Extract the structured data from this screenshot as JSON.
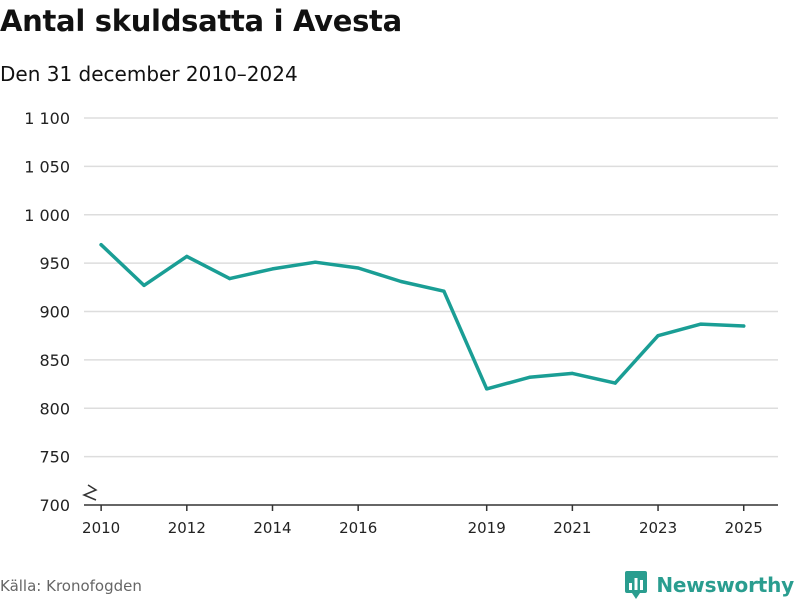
{
  "header": {
    "title": "Antal skuldsatta i Avesta",
    "subtitle": "Den 31 december 2010–2024"
  },
  "footer": {
    "source": "Källa: Kronofogden",
    "brand": "Newsworthy"
  },
  "colors": {
    "line": "#1a9e95",
    "grid": "#dddddd",
    "axis": "#333333",
    "brand": "#2a9d8f"
  },
  "chart_data": {
    "type": "line",
    "title": "Antal skuldsatta i Avesta",
    "subtitle": "Den 31 december 2010–2024",
    "xlabel": "",
    "ylabel": "",
    "xlim": [
      2009.6,
      2025.8
    ],
    "ylim": [
      700,
      1100
    ],
    "yticks": [
      700,
      750,
      800,
      850,
      900,
      950,
      1000,
      1050,
      1100
    ],
    "ytick_labels": [
      "700",
      "750",
      "800",
      "850",
      "900",
      "950",
      "1 000",
      "1 050",
      "1 100"
    ],
    "xticks": [
      2010,
      2012,
      2014,
      2016,
      2019,
      2021,
      2023,
      2025
    ],
    "xtick_labels": [
      "2010",
      "2012",
      "2014",
      "2016",
      "2019",
      "2021",
      "2023",
      "2025"
    ],
    "axis_break": true,
    "grid": true,
    "series": [
      {
        "name": "Antal skuldsatta",
        "x": [
          2010,
          2011,
          2012,
          2013,
          2014,
          2015,
          2016,
          2017,
          2018,
          2019,
          2020,
          2021,
          2022,
          2023,
          2024,
          2025
        ],
        "values": [
          969,
          927,
          957,
          934,
          944,
          951,
          945,
          931,
          921,
          820,
          832,
          836,
          826,
          875,
          887,
          885
        ]
      }
    ]
  }
}
